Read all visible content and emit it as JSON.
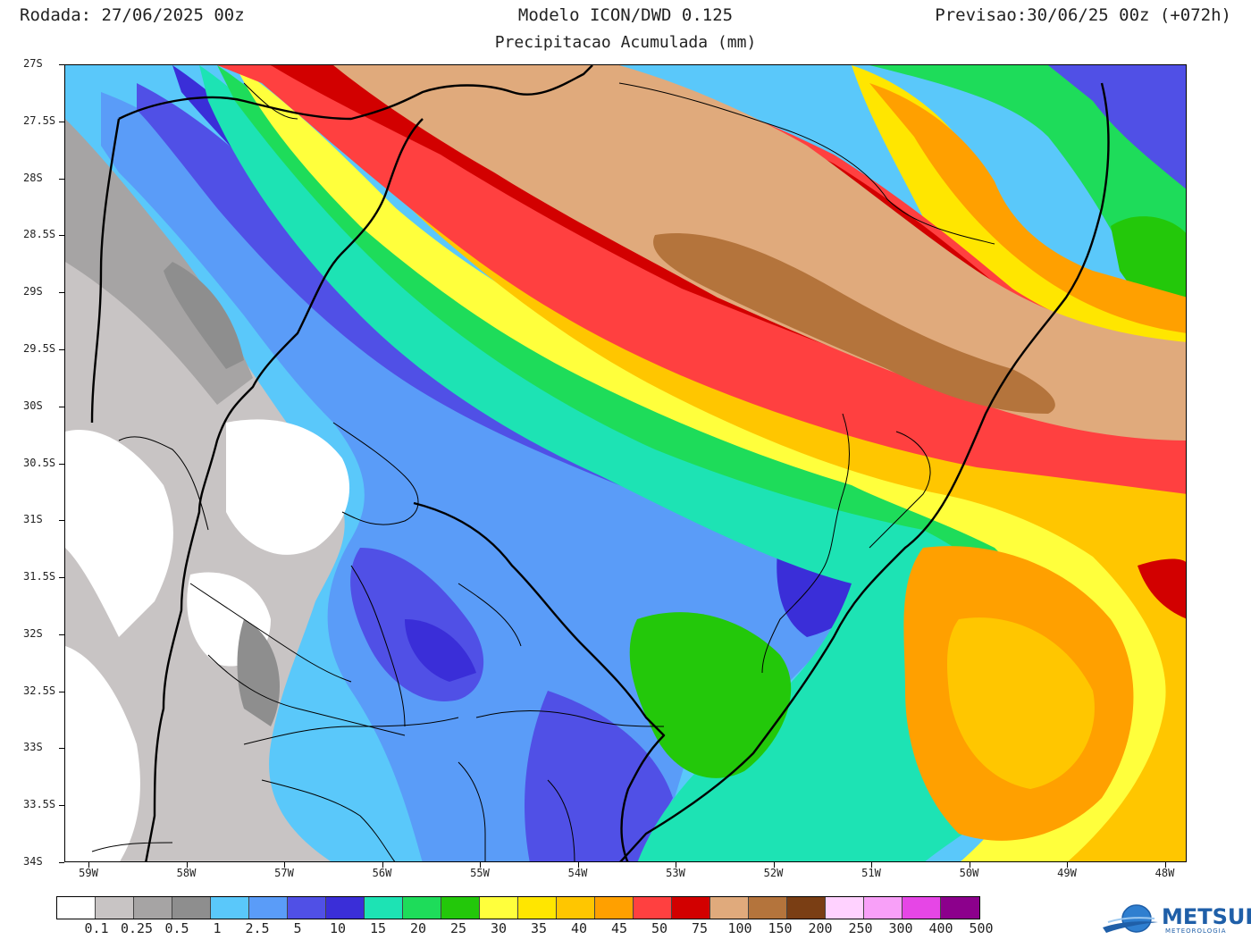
{
  "header": {
    "run": "Rodada: 27/06/2025 00z",
    "model": "Modelo ICON/DWD 0.125",
    "subtitle": "Precipitacao Acumulada (mm)",
    "forecast": "Previsao:30/06/25 00z (+072h)"
  },
  "axes": {
    "lat_labels": [
      "27S",
      "27.5S",
      "28S",
      "28.5S",
      "29S",
      "29.5S",
      "30S",
      "30.5S",
      "31S",
      "31.5S",
      "32S",
      "32.5S",
      "33S",
      "33.5S",
      "34S"
    ],
    "lon_labels": [
      "59W",
      "58W",
      "57W",
      "56W",
      "55W",
      "54W",
      "53W",
      "52W",
      "51W",
      "50W",
      "49W",
      "48W"
    ]
  },
  "legend": {
    "colors": [
      "#ffffff",
      "#c8c4c4",
      "#a6a4a4",
      "#8e8e8e",
      "#5ac8fa",
      "#5a9cf8",
      "#5050e6",
      "#3a2ed8",
      "#1de3b4",
      "#1edc5a",
      "#23c80a",
      "#ffff3c",
      "#ffe600",
      "#ffc600",
      "#ffa000",
      "#ff4040",
      "#d20000",
      "#e0aa7c",
      "#b4743c",
      "#7a3e14",
      "#ffd2ff",
      "#f8a0f8",
      "#e646e6",
      "#8c008c"
    ],
    "labels": [
      "0.1",
      "0.25",
      "0.5",
      "1",
      "2.5",
      "5",
      "10",
      "15",
      "20",
      "25",
      "30",
      "35",
      "40",
      "45",
      "50",
      "75",
      "100",
      "150",
      "200",
      "250",
      "300",
      "400",
      "500"
    ]
  },
  "logo": {
    "name": "METSUL",
    "sub": "METEOROLOGIA"
  }
}
